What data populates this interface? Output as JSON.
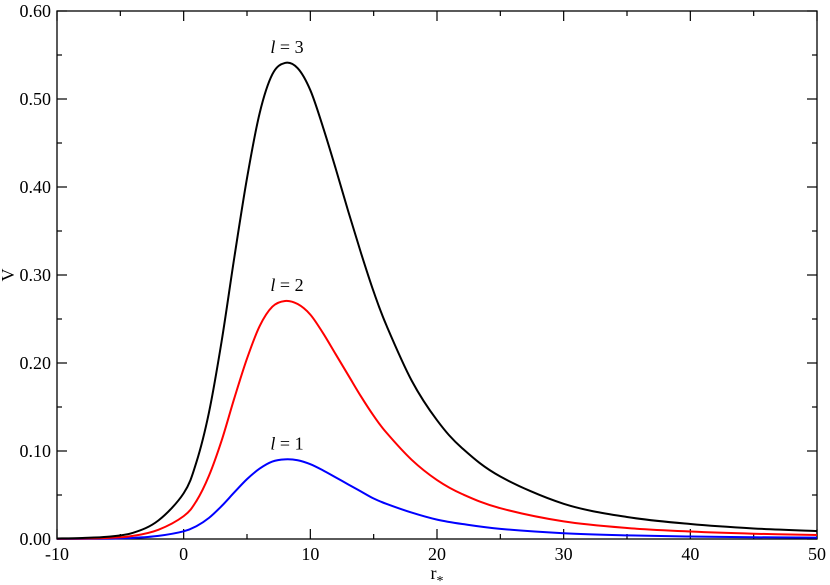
{
  "chart_data": {
    "type": "line",
    "title": "",
    "xlabel": "r",
    "xlabel_sub": "*",
    "ylabel": "V",
    "xlim": [
      -10,
      50
    ],
    "ylim": [
      0,
      0.6
    ],
    "grid": false,
    "x_ticks": [
      -10,
      0,
      10,
      20,
      30,
      40,
      50
    ],
    "x_tick_labels": [
      "-10",
      "0",
      "10",
      "20",
      "30",
      "40",
      "50"
    ],
    "y_ticks": [
      0,
      0.1,
      0.2,
      0.3,
      0.4,
      0.5,
      0.6
    ],
    "y_tick_labels": [
      "0.00",
      "0.10",
      "0.20",
      "0.30",
      "0.40",
      "0.50",
      "0.60"
    ],
    "x": [
      -10,
      -8,
      -6,
      -4,
      -2,
      0,
      1,
      2,
      3,
      4,
      5,
      6,
      7,
      8,
      9,
      10,
      11,
      12,
      13,
      14,
      15,
      16,
      18,
      20,
      22,
      25,
      30,
      35,
      40,
      45,
      50
    ],
    "series": [
      {
        "label_var": "l",
        "label_rest": " = 1",
        "color": "#0000ff",
        "values": [
          0.0001,
          0.0002,
          0.0004,
          0.0012,
          0.0035,
          0.0087,
          0.0145,
          0.024,
          0.0375,
          0.053,
          0.068,
          0.08,
          0.088,
          0.0905,
          0.0895,
          0.085,
          0.078,
          0.07,
          0.062,
          0.054,
          0.046,
          0.04,
          0.03,
          0.022,
          0.017,
          0.0115,
          0.0065,
          0.0041,
          0.0028,
          0.002,
          0.0015
        ]
      },
      {
        "label_var": "l",
        "label_rest": " = 2",
        "color": "#ff0000",
        "values": [
          0.0003,
          0.0006,
          0.0012,
          0.0035,
          0.0105,
          0.026,
          0.043,
          0.072,
          0.112,
          0.16,
          0.205,
          0.242,
          0.264,
          0.2705,
          0.267,
          0.255,
          0.234,
          0.21,
          0.186,
          0.162,
          0.14,
          0.121,
          0.09,
          0.067,
          0.051,
          0.035,
          0.02,
          0.0125,
          0.0085,
          0.006,
          0.0045
        ]
      },
      {
        "label_var": "l",
        "label_rest": " = 3",
        "color": "#000000",
        "values": [
          0.0006,
          0.0012,
          0.0025,
          0.007,
          0.021,
          0.052,
          0.087,
          0.144,
          0.225,
          0.32,
          0.41,
          0.484,
          0.528,
          0.541,
          0.535,
          0.51,
          0.468,
          0.421,
          0.372,
          0.325,
          0.281,
          0.243,
          0.18,
          0.135,
          0.103,
          0.071,
          0.04,
          0.025,
          0.017,
          0.012,
          0.009
        ]
      }
    ]
  }
}
